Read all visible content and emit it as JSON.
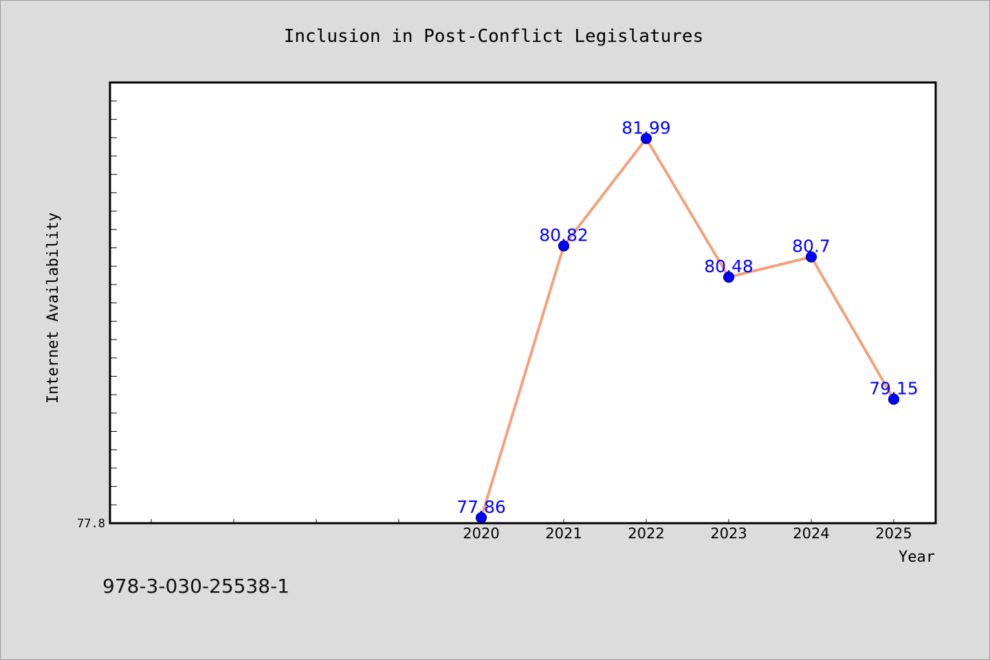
{
  "chart_data": {
    "type": "line",
    "title": "Inclusion in Post-Conflict Legislatures",
    "xlabel": "Year",
    "ylabel": "Internet Availability",
    "categories": [
      "2020",
      "2021",
      "2022",
      "2023",
      "2024",
      "2025"
    ],
    "series": [
      {
        "values": [
          77.86,
          80.82,
          81.99,
          80.48,
          80.7,
          79.15
        ],
        "labels": [
          "77.86",
          "80.82",
          "81.99",
          "80.48",
          "80.7",
          "79.15"
        ],
        "line_color": "#f4a07a",
        "marker_color": "#0000ff"
      }
    ],
    "y_tick_labels": [
      "77.8"
    ],
    "ylim": [
      77.8,
      82.6
    ],
    "grid": false,
    "legend": "none"
  },
  "footer": {
    "isbn": "978-3-030-25538-1"
  },
  "colors": {
    "background": "#dcdcdc",
    "plot_background": "#ffffff",
    "line": "#f4a07a",
    "marker": "#0000ff",
    "data_label": "#0000ff"
  }
}
